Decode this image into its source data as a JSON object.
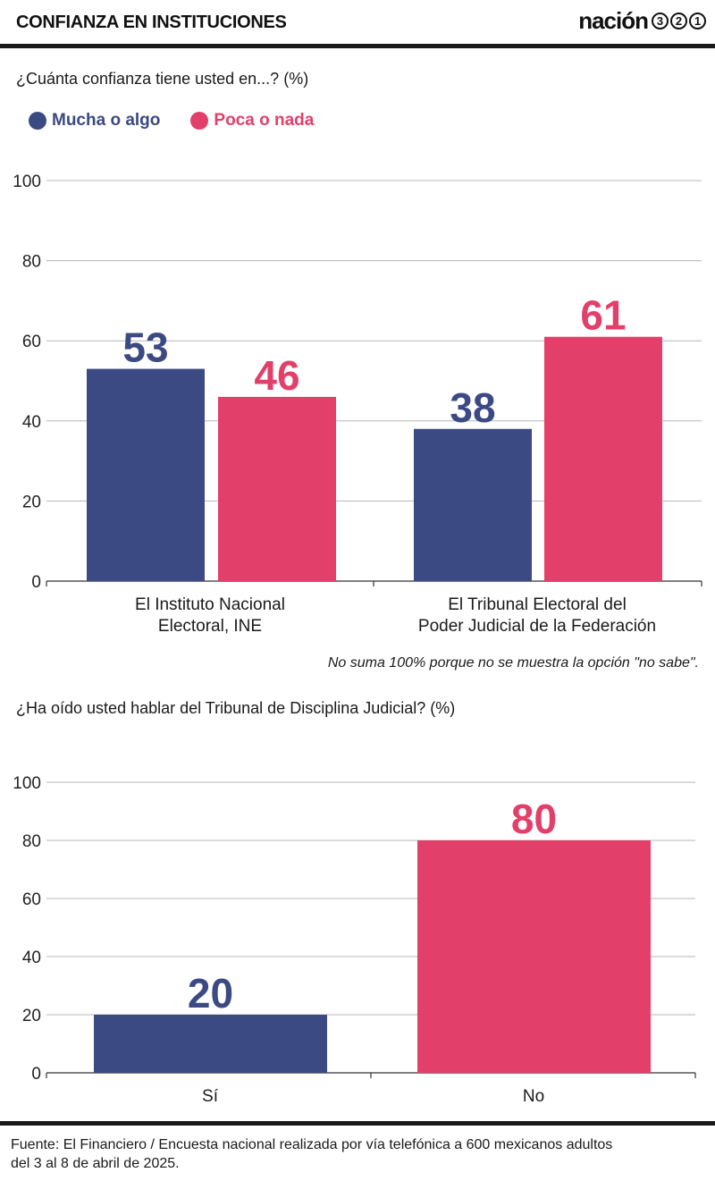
{
  "header": {
    "title": "CONFIANZA EN INSTITUCIONES",
    "brand_word": "nación",
    "brand_badges": [
      "3",
      "2",
      "1"
    ]
  },
  "colors": {
    "blue": "#3b4a82",
    "pink": "#e2406b",
    "grid": "#b5b5b5",
    "axis": "#333333"
  },
  "chart1": {
    "question": "¿Cuánta confianza tiene usted en...? (%)",
    "legend": [
      {
        "label": "Mucha o algo",
        "color": "#3b4a82"
      },
      {
        "label": "Poca o nada",
        "color": "#e2406b"
      }
    ],
    "note": "No suma 100% porque no se muestra la opción \"no sabe\"."
  },
  "chart2": {
    "question": "¿Ha oído usted hablar del Tribunal de Disciplina Judicial?  (%)"
  },
  "footer": {
    "line1": "Fuente: El Financiero / Encuesta nacional realizada por vía telefónica a 600 mexicanos adultos",
    "line2": "del 3 al 8 de abril de 2025."
  },
  "chart_data": [
    {
      "type": "bar",
      "title": "¿Cuánta confianza tiene usted en...? (%)",
      "categories": [
        [
          "El Instituto Nacional",
          "Electoral, INE"
        ],
        [
          "El Tribunal Electoral del",
          "Poder Judicial de la Federación"
        ]
      ],
      "series": [
        {
          "name": "Mucha o algo",
          "color": "#3b4a82",
          "values": [
            53,
            38
          ]
        },
        {
          "name": "Poca o nada",
          "color": "#e2406b",
          "values": [
            46,
            61
          ]
        }
      ],
      "yticks": [
        0,
        20,
        40,
        60,
        80,
        100
      ],
      "ylim": [
        0,
        100
      ],
      "grid": true,
      "legend": "top-left"
    },
    {
      "type": "bar",
      "title": "¿Ha oído usted hablar del Tribunal de Disciplina Judicial?  (%)",
      "categories": [
        [
          "Sí"
        ],
        [
          "No"
        ]
      ],
      "series": [
        {
          "name": "",
          "colors": [
            "#3b4a82",
            "#e2406b"
          ],
          "values": [
            20,
            80
          ]
        }
      ],
      "yticks": [
        0,
        20,
        40,
        60,
        80,
        100
      ],
      "ylim": [
        0,
        100
      ],
      "grid": true
    }
  ]
}
